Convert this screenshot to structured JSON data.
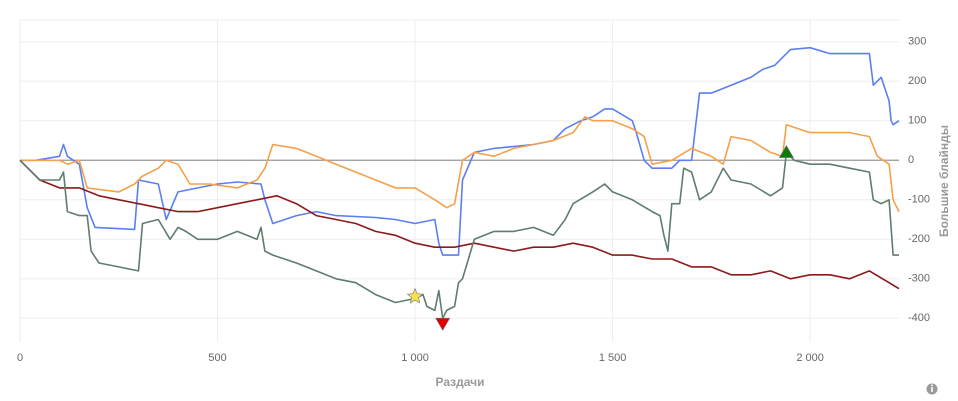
{
  "chart_data": {
    "type": "line",
    "x_label": "Раздачи",
    "y_label": "Большие блайнды",
    "xlim": [
      0,
      2225
    ],
    "ylim": [
      -460,
      355
    ],
    "xticks": [
      0,
      500,
      {
        "value": 1000,
        "label": "1 000"
      },
      {
        "value": 1500,
        "label": "1 500"
      },
      {
        "value": 2000,
        "label": "2 000"
      }
    ],
    "yticks": [
      300,
      200,
      100,
      0,
      -100,
      -200,
      -300,
      -400
    ],
    "grid": true,
    "hline": 0,
    "series": [
      {
        "color": "#5b7ff0",
        "x": [
          0,
          40,
          100,
          110,
          120,
          150,
          170,
          190,
          290,
          300,
          350,
          370,
          400,
          450,
          500,
          550,
          610,
          620,
          640,
          700,
          750,
          800,
          900,
          950,
          1000,
          1050,
          1060,
          1070,
          1110,
          1120,
          1150,
          1200,
          1300,
          1350,
          1380,
          1420,
          1450,
          1480,
          1500,
          1550,
          1560,
          1580,
          1600,
          1650,
          1670,
          1700,
          1720,
          1750,
          1800,
          1850,
          1880,
          1910,
          1950,
          2000,
          2050,
          2100,
          2150,
          2160,
          2170,
          2180,
          2200,
          2205,
          2210,
          2225
        ],
        "values": [
          0,
          0,
          10,
          40,
          10,
          -10,
          -120,
          -170,
          -175,
          -50,
          -60,
          -150,
          -80,
          -70,
          -60,
          -55,
          -60,
          -100,
          -160,
          -140,
          -130,
          -140,
          -145,
          -150,
          -160,
          -150,
          -210,
          -240,
          -240,
          -50,
          20,
          30,
          40,
          50,
          80,
          100,
          110,
          130,
          130,
          100,
          70,
          0,
          -20,
          -20,
          0,
          0,
          170,
          170,
          190,
          210,
          230,
          240,
          280,
          285,
          270,
          270,
          270,
          190,
          200,
          210,
          150,
          100,
          90,
          100
        ]
      },
      {
        "color": "#f5a04b",
        "x": [
          0,
          100,
          120,
          150,
          170,
          250,
          290,
          310,
          350,
          370,
          400,
          430,
          480,
          550,
          600,
          620,
          640,
          700,
          750,
          800,
          850,
          900,
          950,
          1000,
          1050,
          1080,
          1100,
          1120,
          1150,
          1200,
          1250,
          1300,
          1350,
          1400,
          1430,
          1450,
          1500,
          1550,
          1580,
          1600,
          1650,
          1700,
          1750,
          1780,
          1800,
          1850,
          1900,
          1930,
          1940,
          1970,
          2000,
          2050,
          2100,
          2150,
          2170,
          2200,
          2210,
          2225
        ],
        "values": [
          0,
          0,
          -10,
          0,
          -70,
          -80,
          -60,
          -40,
          -20,
          0,
          -10,
          -60,
          -60,
          -70,
          -50,
          -20,
          40,
          30,
          10,
          -10,
          -30,
          -50,
          -70,
          -70,
          -100,
          -120,
          -110,
          0,
          20,
          10,
          30,
          40,
          50,
          70,
          110,
          100,
          100,
          80,
          60,
          -10,
          0,
          30,
          10,
          -10,
          60,
          50,
          20,
          10,
          90,
          80,
          70,
          70,
          70,
          60,
          10,
          -10,
          -100,
          -130
        ]
      },
      {
        "color": "#8b1a1a",
        "x": [
          0,
          50,
          100,
          150,
          200,
          250,
          300,
          350,
          400,
          450,
          500,
          550,
          600,
          650,
          700,
          750,
          800,
          850,
          900,
          950,
          1000,
          1050,
          1100,
          1150,
          1200,
          1250,
          1300,
          1350,
          1400,
          1450,
          1500,
          1550,
          1600,
          1650,
          1700,
          1750,
          1800,
          1850,
          1900,
          1950,
          2000,
          2050,
          2100,
          2150,
          2200,
          2225
        ],
        "values": [
          0,
          -50,
          -70,
          -70,
          -90,
          -100,
          -110,
          -120,
          -130,
          -130,
          -120,
          -110,
          -100,
          -90,
          -110,
          -140,
          -150,
          -160,
          -180,
          -190,
          -210,
          -220,
          -220,
          -210,
          -220,
          -230,
          -220,
          -220,
          -210,
          -220,
          -240,
          -240,
          -250,
          -250,
          -270,
          -270,
          -290,
          -290,
          -280,
          -300,
          -290,
          -290,
          -300,
          -280,
          -310,
          -325
        ]
      },
      {
        "color": "#5e7d6c",
        "x": [
          0,
          30,
          50,
          100,
          110,
          120,
          150,
          170,
          180,
          200,
          250,
          300,
          310,
          350,
          380,
          400,
          420,
          450,
          500,
          550,
          600,
          610,
          620,
          640,
          700,
          750,
          800,
          850,
          900,
          950,
          1000,
          1020,
          1030,
          1050,
          1060,
          1070,
          1080,
          1100,
          1110,
          1120,
          1150,
          1200,
          1250,
          1300,
          1350,
          1380,
          1400,
          1450,
          1480,
          1500,
          1550,
          1600,
          1620,
          1630,
          1640,
          1650,
          1670,
          1680,
          1700,
          1720,
          1750,
          1780,
          1800,
          1850,
          1900,
          1930,
          1940,
          1960,
          2000,
          2050,
          2100,
          2150,
          2160,
          2180,
          2200,
          2210,
          2225
        ],
        "values": [
          0,
          -30,
          -50,
          -50,
          -30,
          -130,
          -140,
          -140,
          -230,
          -260,
          -270,
          -280,
          -160,
          -150,
          -200,
          -170,
          -180,
          -200,
          -200,
          -180,
          -200,
          -170,
          -230,
          -240,
          -260,
          -280,
          -300,
          -310,
          -340,
          -360,
          -350,
          -340,
          -370,
          -380,
          -330,
          -400,
          -380,
          -370,
          -310,
          -300,
          -200,
          -180,
          -180,
          -170,
          -190,
          -150,
          -110,
          -80,
          -60,
          -80,
          -100,
          -130,
          -140,
          -190,
          -230,
          -110,
          -110,
          -20,
          -30,
          -100,
          -80,
          -20,
          -50,
          -60,
          -90,
          -70,
          20,
          0,
          -10,
          -10,
          -20,
          -30,
          -100,
          -110,
          -100,
          -240,
          -240
        ]
      }
    ],
    "markers": [
      {
        "shape": "star",
        "color": "#f5e14a",
        "x": 1000,
        "y": -345
      },
      {
        "shape": "triangle-down",
        "color": "#e00000",
        "x": 1070,
        "y": -415
      },
      {
        "shape": "triangle-up",
        "color": "#0a7a0a",
        "x": 1940,
        "y": 22
      }
    ]
  }
}
